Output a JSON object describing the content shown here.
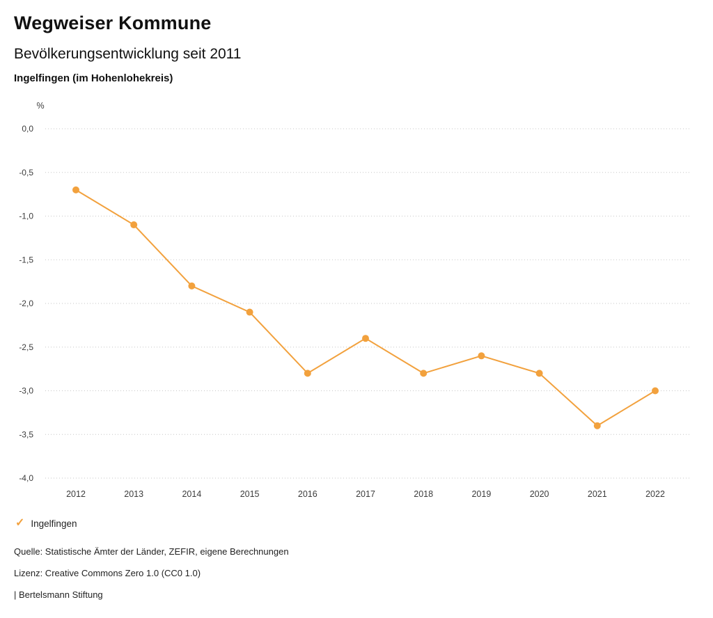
{
  "header": {
    "title": "Wegweiser Kommune",
    "subtitle": "Bevölkerungsentwicklung seit 2011",
    "region": "Ingelfingen (im Hohenlohekreis)"
  },
  "chart_data": {
    "type": "line",
    "title": "Bevölkerungsentwicklung seit 2011",
    "ylabel": "%",
    "categories": [
      "2012",
      "2013",
      "2014",
      "2015",
      "2016",
      "2017",
      "2018",
      "2019",
      "2020",
      "2021",
      "2022"
    ],
    "series": [
      {
        "name": "Ingelfingen",
        "color": "#F2A13D",
        "values": [
          -0.7,
          -1.1,
          -1.8,
          -2.1,
          -2.8,
          -2.4,
          -2.8,
          -2.6,
          -2.8,
          -3.4,
          -3.0
        ]
      }
    ],
    "ylim": [
      -4.0,
      0.0
    ],
    "ytick_step": 0.5,
    "ytick_labels": [
      "0,0",
      "-0,5",
      "-1,0",
      "-1,5",
      "-2,0",
      "-2,5",
      "-3,0",
      "-3,5",
      "-4,0"
    ],
    "grid": "horizontal-dotted",
    "legend_position": "bottom-left"
  },
  "legend": {
    "items": [
      {
        "label": "Ingelfingen",
        "color": "#F2A13D",
        "icon": "check-icon"
      }
    ]
  },
  "footer": {
    "source": "Quelle: Statistische Ämter der Länder, ZEFIR, eigene Berechnungen",
    "license": "Lizenz: Creative Commons Zero 1.0 (CC0 1.0)",
    "attribution": "| Bertelsmann Stiftung"
  }
}
